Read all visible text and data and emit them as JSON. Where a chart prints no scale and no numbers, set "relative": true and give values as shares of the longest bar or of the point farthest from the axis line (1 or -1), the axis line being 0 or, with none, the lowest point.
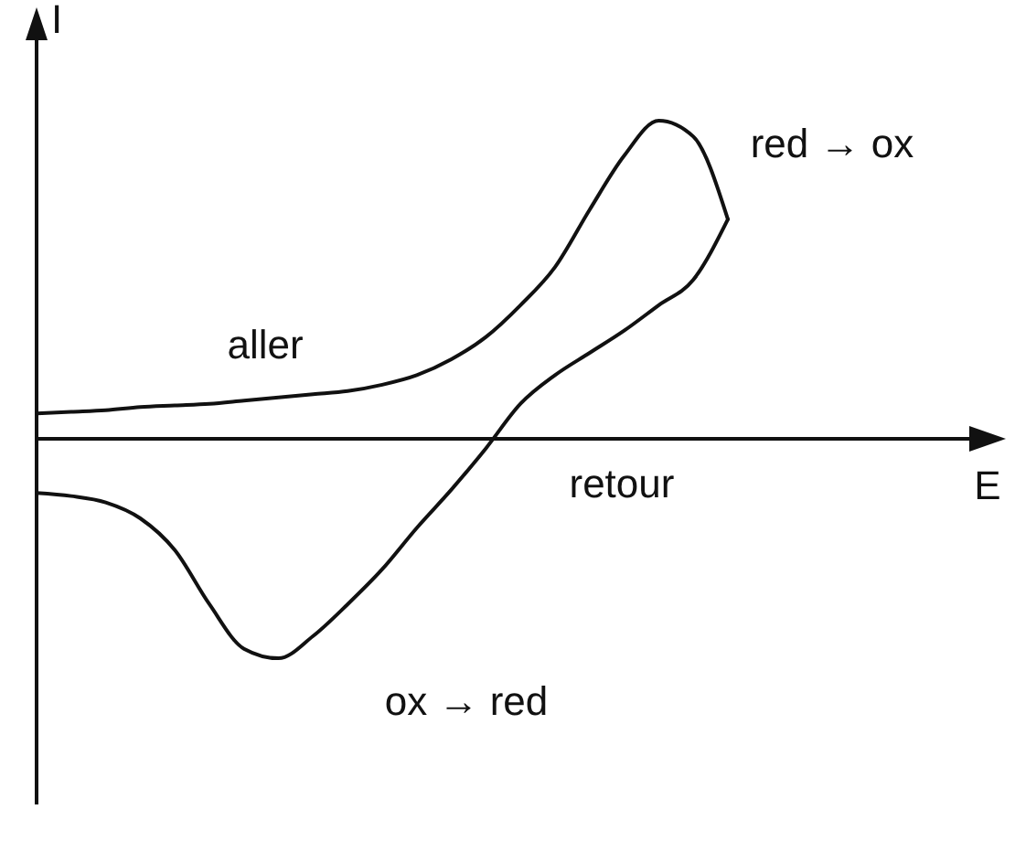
{
  "chart_data": {
    "type": "line",
    "relative": true,
    "ylabel": "I",
    "categories": [
      null,
      null,
      null,
      null,
      null,
      null,
      null,
      null,
      null,
      null,
      null,
      null,
      null,
      null,
      null,
      null,
      null,
      null,
      null,
      null,
      null
    ],
    "series": [
      {
        "color": "#111111",
        "values": [
          0.08,
          0.085,
          0.09,
          0.1,
          0.105,
          0.11,
          0.12,
          0.13,
          0.14,
          0.15,
          0.17,
          0.2,
          0.25,
          0.32,
          0.42,
          0.54,
          0.72,
          0.89,
          1,
          0.95,
          0.69
        ]
      },
      {
        "color": "#111111",
        "values": [
          -0.17,
          -0.18,
          -0.2,
          -0.25,
          -0.35,
          -0.52,
          -0.66,
          -0.69,
          -0.62,
          -0.52,
          -0.41,
          -0.28,
          -0.16,
          -0.03,
          0.11,
          0.2,
          0.27,
          0.34,
          0.42,
          0.5,
          0.69
        ]
      }
    ],
    "annotations": [
      "aller",
      "retour",
      "red → ox",
      "ox → red",
      "E"
    ]
  }
}
